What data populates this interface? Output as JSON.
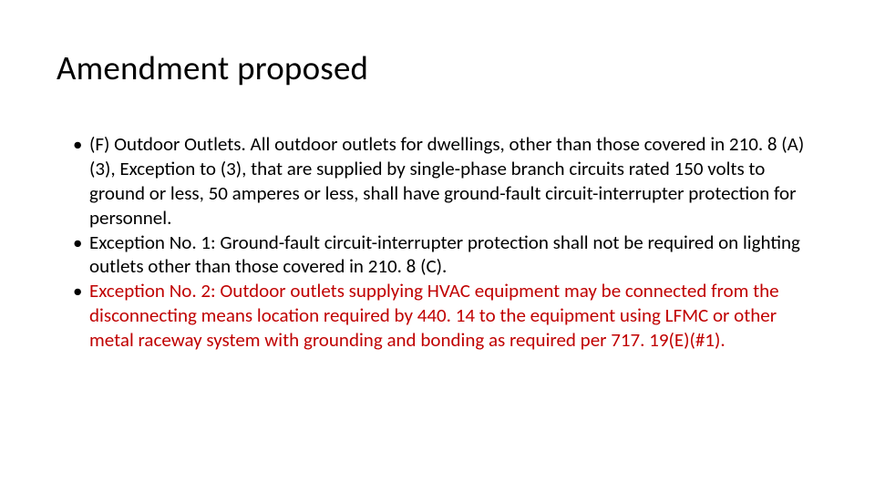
{
  "slide": {
    "title": "Amendment proposed",
    "title_color": "#000000",
    "title_fontsize": 37,
    "body_fontsize": 21,
    "body_lineheight": 1.28,
    "text_color_default": "#000000",
    "text_color_highlight": "#c00000",
    "background_color": "#ffffff",
    "bullets": [
      {
        "indent": 0,
        "runs": [
          {
            "text": "(F) Outdoor Outlets. All outdoor outlets for dwellings, other than those covered in 210. 8 (A)(3), Exception to (3), that are supplied by single-phase branch circuits rated 150 volts to ground or less, 50 amperes or less, shall have ground-fault circuit-interrupter protection for personnel.",
            "color": "default"
          }
        ]
      },
      {
        "indent": 0,
        "runs": [
          {
            "text": " Exception No. 1: Ground-fault circuit-interrupter protection shall not be required on lighting outlets other than those covered in 210. 8 (C).",
            "color": "default"
          }
        ]
      },
      {
        "indent": 0,
        "runs": [
          {
            "text": "Exception  No. 2: Outdoor outlets supplying HVAC equipment may be connected from the disconnecting means location required by 440. 14 to the equipment using LFMC or other metal raceway system with grounding and bonding as required per 717. 19(E)(#1).",
            "color": "highlight"
          }
        ]
      }
    ]
  }
}
